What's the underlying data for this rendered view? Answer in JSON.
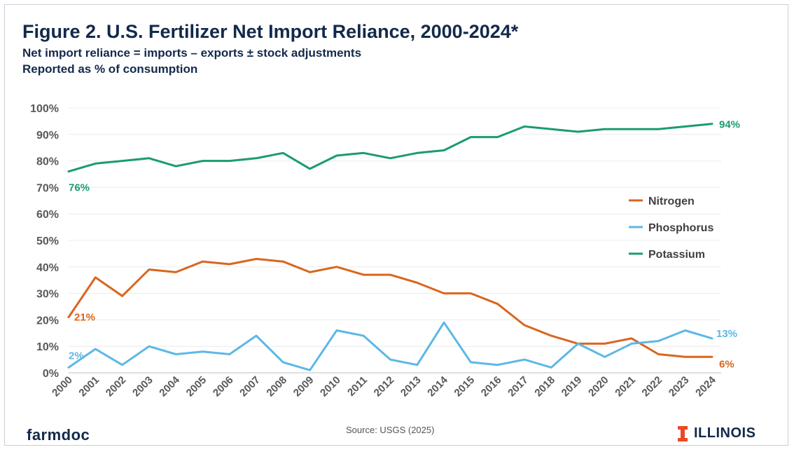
{
  "header": {
    "title": "Figure 2. U.S. Fertilizer Net Import Reliance, 2000-2024*",
    "subtitle_1": "Net import reliance = imports – exports ± stock adjustments",
    "subtitle_2": "Reported as % of consumption"
  },
  "footer": {
    "brand_left": "farmdoc",
    "source": "Source: USGS (2025)",
    "brand_right": "ILLINOIS",
    "brand_right_color": "#e84a27"
  },
  "chart_data": {
    "type": "line",
    "x": [
      "2000",
      "2001",
      "2002",
      "2003",
      "2004",
      "2005",
      "2006",
      "2007",
      "2008",
      "2009",
      "2010",
      "2011",
      "2012",
      "2013",
      "2014",
      "2015",
      "2016",
      "2017",
      "2018",
      "2019",
      "2020",
      "2021",
      "2022",
      "2023",
      "2024"
    ],
    "ylim": [
      0,
      100
    ],
    "yticks": [
      "0%",
      "10%",
      "20%",
      "30%",
      "40%",
      "50%",
      "60%",
      "70%",
      "80%",
      "90%",
      "100%"
    ],
    "grid": true,
    "legend_position": "right",
    "series": [
      {
        "name": "Nitrogen",
        "color": "#d9661f",
        "values": [
          21,
          36,
          29,
          39,
          38,
          42,
          41,
          43,
          42,
          38,
          40,
          37,
          37,
          34,
          30,
          30,
          26,
          18,
          14,
          11,
          11,
          13,
          7,
          6,
          6
        ],
        "start_label": "21%",
        "end_label": "6%"
      },
      {
        "name": "Phosphorus",
        "color": "#5cb8e6",
        "values": [
          2,
          9,
          3,
          10,
          7,
          8,
          7,
          14,
          4,
          1,
          16,
          14,
          5,
          3,
          19,
          4,
          3,
          5,
          2,
          11,
          6,
          11,
          12,
          16,
          13
        ],
        "start_label": "2%",
        "end_label": "13%"
      },
      {
        "name": "Potassium",
        "color": "#1a9b73",
        "values": [
          76,
          79,
          80,
          81,
          78,
          80,
          80,
          81,
          83,
          77,
          82,
          83,
          81,
          83,
          84,
          89,
          89,
          93,
          92,
          91,
          92,
          92,
          92,
          93,
          94
        ],
        "start_label": "76%",
        "end_label": "94%"
      }
    ]
  }
}
